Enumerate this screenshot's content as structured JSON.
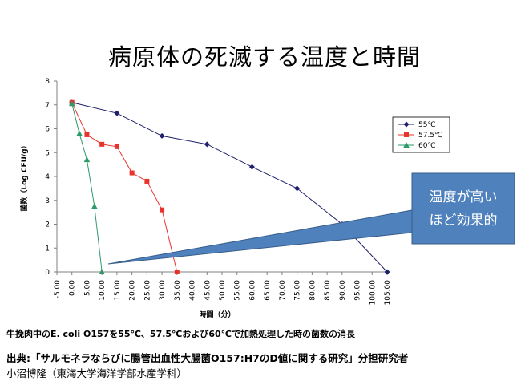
{
  "title": "病原体の死滅する温度と時間",
  "caption": "牛挽肉中のE. coli O157を55℃、57.5℃および60℃で加熱処理した時の菌数の消長",
  "source_line1": "出典:「サルモネラならびに腸管出血性大腸菌O157:H7のD値に関する研究」分担研究者",
  "source_line2": "小沼博隆（東海大学海洋学部水産学科）",
  "callout": {
    "line1": "温度が高い",
    "line2": "ほど効果的",
    "fill": "#4f81bd",
    "stroke": "#385d8a"
  },
  "chart_data": {
    "type": "line",
    "xlabel": "時間（分）",
    "ylabel": "菌数（Log CFU/g）",
    "xlim": [
      -5,
      105
    ],
    "ylim": [
      0,
      8
    ],
    "x_ticks": [
      -5,
      0,
      5,
      10,
      15,
      20,
      25,
      30,
      35,
      40,
      45,
      50,
      55,
      60,
      65,
      70,
      75,
      80,
      85,
      90,
      95,
      100,
      105
    ],
    "x_tick_labels": [
      "-5.00",
      "0.00",
      "5.00",
      "10.00",
      "15.00",
      "20.00",
      "25.00",
      "30.00",
      "35.00",
      "40.00",
      "45.00",
      "50.00",
      "55.00",
      "60.00",
      "65.00",
      "70.00",
      "75.00",
      "80.00",
      "85.00",
      "90.00",
      "95.00",
      "100.00",
      "105.00"
    ],
    "y_ticks": [
      0,
      1,
      2,
      3,
      4,
      5,
      6,
      7,
      8
    ],
    "legend_position": "right",
    "series": [
      {
        "name": "55℃",
        "color": "#1f1f6b",
        "marker": "diamond",
        "x": [
          0,
          15,
          30,
          45,
          60,
          75,
          90,
          105
        ],
        "y": [
          7.1,
          6.65,
          5.7,
          5.35,
          4.4,
          3.5,
          2.0,
          0.0
        ]
      },
      {
        "name": "57.5℃",
        "color": "#e8322c",
        "marker": "square",
        "x": [
          0,
          5,
          10,
          15,
          20,
          25,
          30,
          35
        ],
        "y": [
          7.1,
          5.75,
          5.35,
          5.25,
          4.15,
          3.8,
          2.6,
          0.0
        ]
      },
      {
        "name": "60℃",
        "color": "#2e9a6a",
        "marker": "triangle",
        "x": [
          0,
          2.5,
          5,
          7.5,
          10
        ],
        "y": [
          7.05,
          5.8,
          4.7,
          2.75,
          0.0
        ]
      }
    ]
  }
}
